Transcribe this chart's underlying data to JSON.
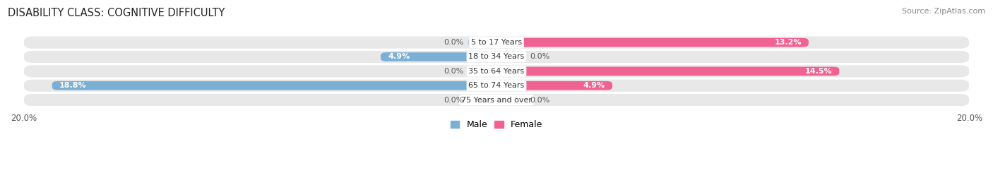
{
  "title": "DISABILITY CLASS: COGNITIVE DIFFICULTY",
  "source_text": "Source: ZipAtlas.com",
  "categories": [
    "5 to 17 Years",
    "18 to 34 Years",
    "35 to 64 Years",
    "65 to 74 Years",
    "75 Years and over"
  ],
  "male_values": [
    0.0,
    4.9,
    0.0,
    18.8,
    0.0
  ],
  "female_values": [
    13.2,
    0.0,
    14.5,
    4.9,
    0.0
  ],
  "male_color": "#7bafd4",
  "female_color": "#f06292",
  "male_color_light": "#aecde3",
  "female_color_light": "#f8bbd0",
  "xlim": 20.0,
  "bar_height": 0.62,
  "row_bg": "#e8e8e8",
  "title_fontsize": 10.5,
  "label_fontsize": 8.0,
  "tick_fontsize": 8.5,
  "source_fontsize": 8.0,
  "legend_fontsize": 9.0,
  "figure_bg": "#ffffff",
  "text_dark": "#555555",
  "text_white": "#ffffff"
}
